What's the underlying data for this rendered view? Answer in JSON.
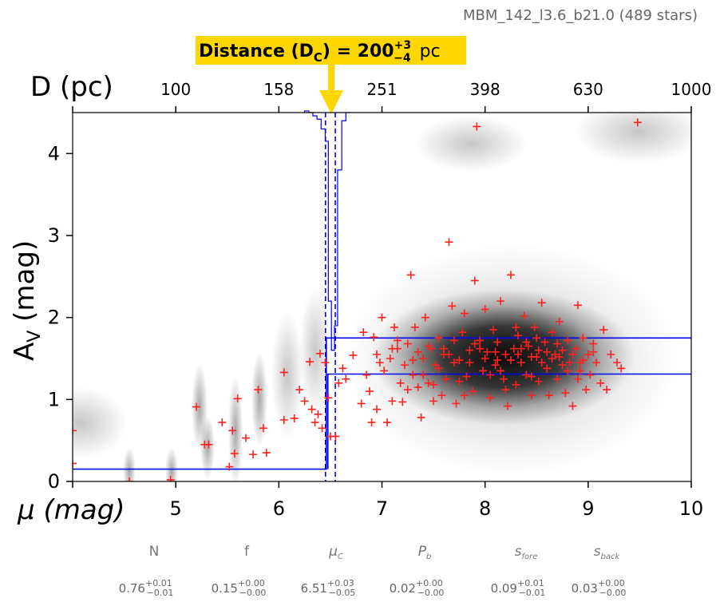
{
  "chart_data": {
    "type": "scatter",
    "title": "MBM_142_l3.6_b21.0 (489 stars)",
    "annotation": {
      "prefix": "Distance (D",
      "sub": "C",
      "mid": ") = 200",
      "sup": "+3",
      "low": "−4",
      "unit": " pc"
    },
    "xlabel": "μ (mag)",
    "x2label": "D (pc)",
    "ylabel": "A",
    "ylabel_sub": "V",
    "ylabel_suffix": " (mag)",
    "xlim": [
      4,
      10
    ],
    "ylim": [
      0,
      4.5
    ],
    "xticks": [
      5,
      6,
      7,
      8,
      9,
      10
    ],
    "x_tick_first": 4,
    "yticks": [
      0,
      1,
      2,
      3,
      4
    ],
    "x2ticks": [
      "100",
      "158",
      "251",
      "398",
      "630",
      "1000"
    ],
    "model": {
      "mu_cloud": 6.51,
      "mu_lo": 6.46,
      "mu_hi": 6.54,
      "av_fore": 0.15,
      "av_back_lo": 1.31,
      "av_back_hi": 1.75
    },
    "scatter": {
      "name": "stars",
      "points": [
        [
          4.0,
          0.62
        ],
        [
          4.0,
          0.22
        ],
        [
          4.55,
          0.0
        ],
        [
          4.95,
          0.02
        ],
        [
          5.2,
          0.91
        ],
        [
          5.28,
          0.45
        ],
        [
          5.32,
          0.45
        ],
        [
          5.45,
          0.72
        ],
        [
          5.52,
          0.18
        ],
        [
          5.55,
          0.62
        ],
        [
          5.57,
          0.34
        ],
        [
          5.6,
          1.01
        ],
        [
          5.68,
          0.53
        ],
        [
          5.75,
          0.33
        ],
        [
          5.8,
          1.12
        ],
        [
          5.85,
          0.65
        ],
        [
          5.88,
          0.35
        ],
        [
          6.05,
          0.75
        ],
        [
          6.05,
          1.33
        ],
        [
          6.15,
          0.77
        ],
        [
          6.2,
          1.12
        ],
        [
          6.25,
          0.98
        ],
        [
          6.3,
          1.46
        ],
        [
          6.32,
          0.88
        ],
        [
          6.35,
          0.72
        ],
        [
          6.38,
          0.82
        ],
        [
          6.4,
          1.56
        ],
        [
          6.42,
          0.65
        ],
        [
          6.45,
          1.45
        ],
        [
          6.48,
          1.02
        ],
        [
          6.5,
          0.55
        ],
        [
          6.55,
          0.55
        ],
        [
          6.58,
          1.2
        ],
        [
          6.62,
          1.38
        ],
        [
          6.65,
          1.25
        ],
        [
          6.72,
          1.54
        ],
        [
          6.8,
          0.95
        ],
        [
          6.82,
          1.82
        ],
        [
          6.85,
          1.3
        ],
        [
          6.88,
          1.1
        ],
        [
          6.9,
          0.72
        ],
        [
          6.92,
          1.76
        ],
        [
          6.95,
          0.88
        ],
        [
          6.98,
          1.45
        ],
        [
          7.0,
          2.0
        ],
        [
          7.02,
          1.35
        ],
        [
          7.05,
          0.72
        ],
        [
          7.08,
          1.5
        ],
        [
          7.1,
          0.98
        ],
        [
          7.12,
          1.88
        ],
        [
          7.15,
          1.62
        ],
        [
          7.18,
          1.2
        ],
        [
          7.2,
          0.97
        ],
        [
          7.22,
          1.42
        ],
        [
          7.25,
          1.68
        ],
        [
          7.28,
          2.52
        ],
        [
          7.3,
          1.3
        ],
        [
          7.32,
          1.88
        ],
        [
          7.35,
          1.15
        ],
        [
          7.38,
          0.78
        ],
        [
          7.4,
          1.5
        ],
        [
          7.42,
          2.0
        ],
        [
          7.45,
          1.2
        ],
        [
          7.48,
          1.62
        ],
        [
          7.5,
          0.98
        ],
        [
          7.52,
          1.42
        ],
        [
          7.55,
          1.75
        ],
        [
          7.58,
          1.05
        ],
        [
          7.6,
          1.55
        ],
        [
          7.62,
          1.25
        ],
        [
          7.65,
          2.92
        ],
        [
          7.68,
          2.14
        ],
        [
          7.7,
          1.72
        ],
        [
          7.72,
          0.95
        ],
        [
          7.75,
          1.48
        ],
        [
          7.78,
          1.82
        ],
        [
          7.8,
          2.05
        ],
        [
          7.82,
          1.28
        ],
        [
          7.85,
          1.6
        ],
        [
          7.88,
          1.1
        ],
        [
          7.9,
          2.45
        ],
        [
          7.92,
          4.33
        ],
        [
          7.95,
          1.72
        ],
        [
          7.98,
          1.35
        ],
        [
          8.0,
          2.1
        ],
        [
          8.02,
          1.58
        ],
        [
          8.05,
          1.02
        ],
        [
          8.08,
          1.85
        ],
        [
          8.1,
          1.42
        ],
        [
          8.12,
          1.7
        ],
        [
          8.15,
          2.2
        ],
        [
          8.18,
          1.25
        ],
        [
          8.2,
          1.55
        ],
        [
          8.22,
          0.92
        ],
        [
          8.25,
          2.52
        ],
        [
          8.28,
          1.62
        ],
        [
          8.3,
          1.18
        ],
        [
          8.32,
          1.78
        ],
        [
          8.35,
          1.45
        ],
        [
          8.38,
          2.02
        ],
        [
          8.4,
          1.3
        ],
        [
          8.42,
          1.65
        ],
        [
          8.45,
          1.05
        ],
        [
          8.48,
          1.88
        ],
        [
          8.5,
          1.52
        ],
        [
          8.52,
          1.22
        ],
        [
          8.55,
          2.18
        ],
        [
          8.58,
          1.7
        ],
        [
          8.6,
          1.38
        ],
        [
          8.62,
          1.05
        ],
        [
          8.65,
          1.82
        ],
        [
          8.68,
          1.55
        ],
        [
          8.7,
          1.25
        ],
        [
          8.72,
          1.95
        ],
        [
          8.75,
          1.6
        ],
        [
          8.78,
          1.08
        ],
        [
          8.8,
          1.72
        ],
        [
          8.82,
          1.45
        ],
        [
          8.85,
          0.92
        ],
        [
          8.88,
          1.62
        ],
        [
          8.9,
          2.15
        ],
        [
          8.92,
          1.35
        ],
        [
          8.95,
          1.75
        ],
        [
          8.98,
          1.12
        ],
        [
          9.0,
          1.55
        ],
        [
          9.02,
          1.3
        ],
        [
          9.05,
          1.68
        ],
        [
          9.08,
          1.45
        ],
        [
          9.12,
          1.2
        ],
        [
          9.15,
          1.85
        ],
        [
          9.18,
          1.12
        ],
        [
          9.22,
          1.55
        ],
        [
          9.28,
          1.45
        ],
        [
          9.32,
          1.38
        ],
        [
          9.48,
          4.38
        ],
        [
          7.1,
          1.62
        ],
        [
          7.3,
          1.48
        ],
        [
          7.45,
          1.65
        ],
        [
          7.55,
          1.38
        ],
        [
          7.7,
          1.45
        ],
        [
          7.85,
          1.45
        ],
        [
          8.0,
          1.5
        ],
        [
          8.1,
          1.58
        ],
        [
          8.25,
          1.48
        ],
        [
          8.35,
          1.62
        ],
        [
          8.45,
          1.52
        ],
        [
          8.55,
          1.45
        ],
        [
          8.65,
          1.5
        ],
        [
          8.75,
          1.42
        ],
        [
          8.85,
          1.55
        ],
        [
          8.95,
          1.48
        ],
        [
          7.6,
          1.62
        ],
        [
          7.95,
          1.62
        ],
        [
          8.15,
          1.35
        ],
        [
          8.4,
          1.7
        ],
        [
          8.6,
          1.58
        ],
        [
          8.8,
          1.35
        ],
        [
          7.4,
          1.3
        ],
        [
          7.75,
          1.22
        ],
        [
          8.05,
          1.3
        ],
        [
          8.3,
          1.88
        ],
        [
          8.5,
          1.75
        ],
        [
          8.7,
          1.68
        ],
        [
          9.05,
          1.58
        ],
        [
          7.25,
          1.12
        ],
        [
          7.5,
          1.18
        ],
        [
          7.8,
          1.05
        ],
        [
          8.2,
          1.12
        ],
        [
          8.45,
          1.28
        ],
        [
          8.9,
          1.25
        ],
        [
          6.95,
          1.55
        ],
        [
          7.15,
          1.72
        ],
        [
          7.35,
          1.58
        ],
        [
          7.65,
          1.55
        ],
        [
          7.9,
          1.68
        ],
        [
          8.12,
          1.48
        ],
        [
          8.32,
          1.55
        ],
        [
          8.52,
          1.6
        ],
        [
          8.72,
          1.52
        ],
        [
          8.92,
          1.45
        ]
      ]
    },
    "histogram_top": 4.52
  },
  "params": {
    "names": [
      {
        "main": "N",
        "sub": ""
      },
      {
        "main": "f",
        "sub": ""
      },
      {
        "main": "μ",
        "sub": "C"
      },
      {
        "main": "P",
        "sub": "b"
      },
      {
        "main": "s",
        "sub": "fore"
      },
      {
        "main": "s",
        "sub": "back"
      }
    ],
    "values": [
      {
        "v": "0.76",
        "up": "+0.01",
        "dn": "−0.01"
      },
      {
        "v": "0.15",
        "up": "+0.00",
        "dn": "−0.00"
      },
      {
        "v": "6.51",
        "up": "+0.03",
        "dn": "−0.05"
      },
      {
        "v": "0.02",
        "up": "+0.00",
        "dn": "−0.00"
      },
      {
        "v": "0.09",
        "up": "+0.01",
        "dn": "−0.01"
      },
      {
        "v": "0.03",
        "up": "+0.00",
        "dn": "−0.00"
      }
    ]
  },
  "colors": {
    "points": "#ff2020",
    "model": "#0000ee",
    "annotation_bg": "#ffd700",
    "arrow": "#ffd700"
  }
}
